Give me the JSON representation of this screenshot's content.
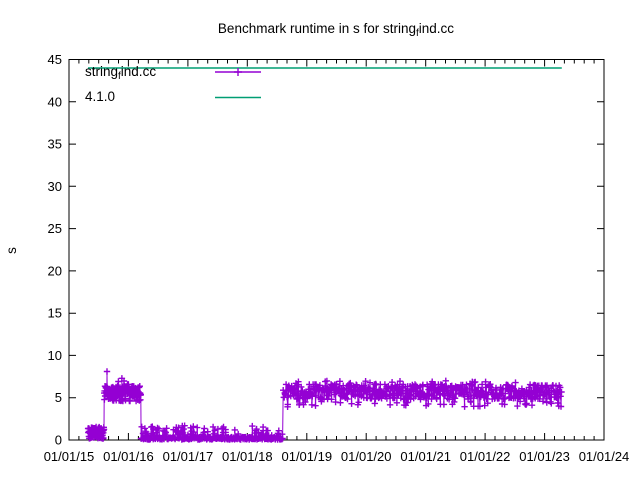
{
  "title": {
    "prefix": "Benchmark runtime in s for string",
    "subscript": "f",
    "suffix": "ind.cc"
  },
  "ylabel": "s",
  "legend": {
    "series": {
      "prefix": "string",
      "subscript": "f",
      "suffix": "ind.cc"
    },
    "reference": {
      "label": "4.1.0"
    }
  },
  "colors": {
    "series": "#9400d3",
    "reference": "#009e73",
    "axis": "#000000",
    "background": "#ffffff"
  },
  "chart_data": {
    "type": "line",
    "title": "Benchmark runtime in s for string_find.cc",
    "xlabel": "",
    "ylabel": "s",
    "legend_position": "top-left-inside",
    "grid": false,
    "x_axis": {
      "tick_labels": [
        "01/01/15",
        "01/01/16",
        "01/01/17",
        "01/01/18",
        "01/01/19",
        "01/01/20",
        "01/01/21",
        "01/01/22",
        "01/01/23",
        "01/01/24"
      ],
      "minor_ticks_per_interval": 6,
      "range_years": [
        0,
        9
      ]
    },
    "y_axis": {
      "ticks": [
        0,
        5,
        10,
        15,
        20,
        25,
        30,
        35,
        40,
        45
      ],
      "range": [
        0,
        45
      ]
    },
    "series": [
      {
        "name": "string_find.cc",
        "color": "#9400d3",
        "style": "linespoints",
        "marker": "plus",
        "description": "dense daily benchmark runtimes; years measured from 01/01/15",
        "segments": [
          {
            "from_year": 0.32,
            "to_year": 0.59,
            "points": 90,
            "bands": [
              {
                "fraction": 1.0,
                "low": 0.15,
                "high": 1.55
              }
            ]
          },
          {
            "from_year": 0.59,
            "to_year": 1.21,
            "points": 150,
            "bands": [
              {
                "fraction": 0.97,
                "low": 4.6,
                "high": 6.4
              },
              {
                "fraction": 0.03,
                "low": 6.5,
                "high": 7.0
              }
            ]
          },
          {
            "from_year": 1.21,
            "to_year": 3.6,
            "points": 300,
            "bands": [
              {
                "fraction": 0.78,
                "low": 0.05,
                "high": 0.35
              },
              {
                "fraction": 0.22,
                "low": 0.5,
                "high": 1.7
              }
            ]
          },
          {
            "from_year": 3.6,
            "to_year": 8.29,
            "points": 600,
            "bands": [
              {
                "fraction": 0.89,
                "low": 4.8,
                "high": 6.6
              },
              {
                "fraction": 0.07,
                "low": 3.9,
                "high": 4.6
              },
              {
                "fraction": 0.04,
                "low": 6.6,
                "high": 7.0
              }
            ]
          }
        ],
        "outliers": [
          {
            "year": 0.64,
            "value": 8.1
          },
          {
            "year": 0.89,
            "value": 7.3
          }
        ]
      },
      {
        "name": "4.1.0",
        "color": "#009e73",
        "style": "line",
        "y_value": 44,
        "from_year": 0.32,
        "to_year": 8.29
      }
    ]
  }
}
